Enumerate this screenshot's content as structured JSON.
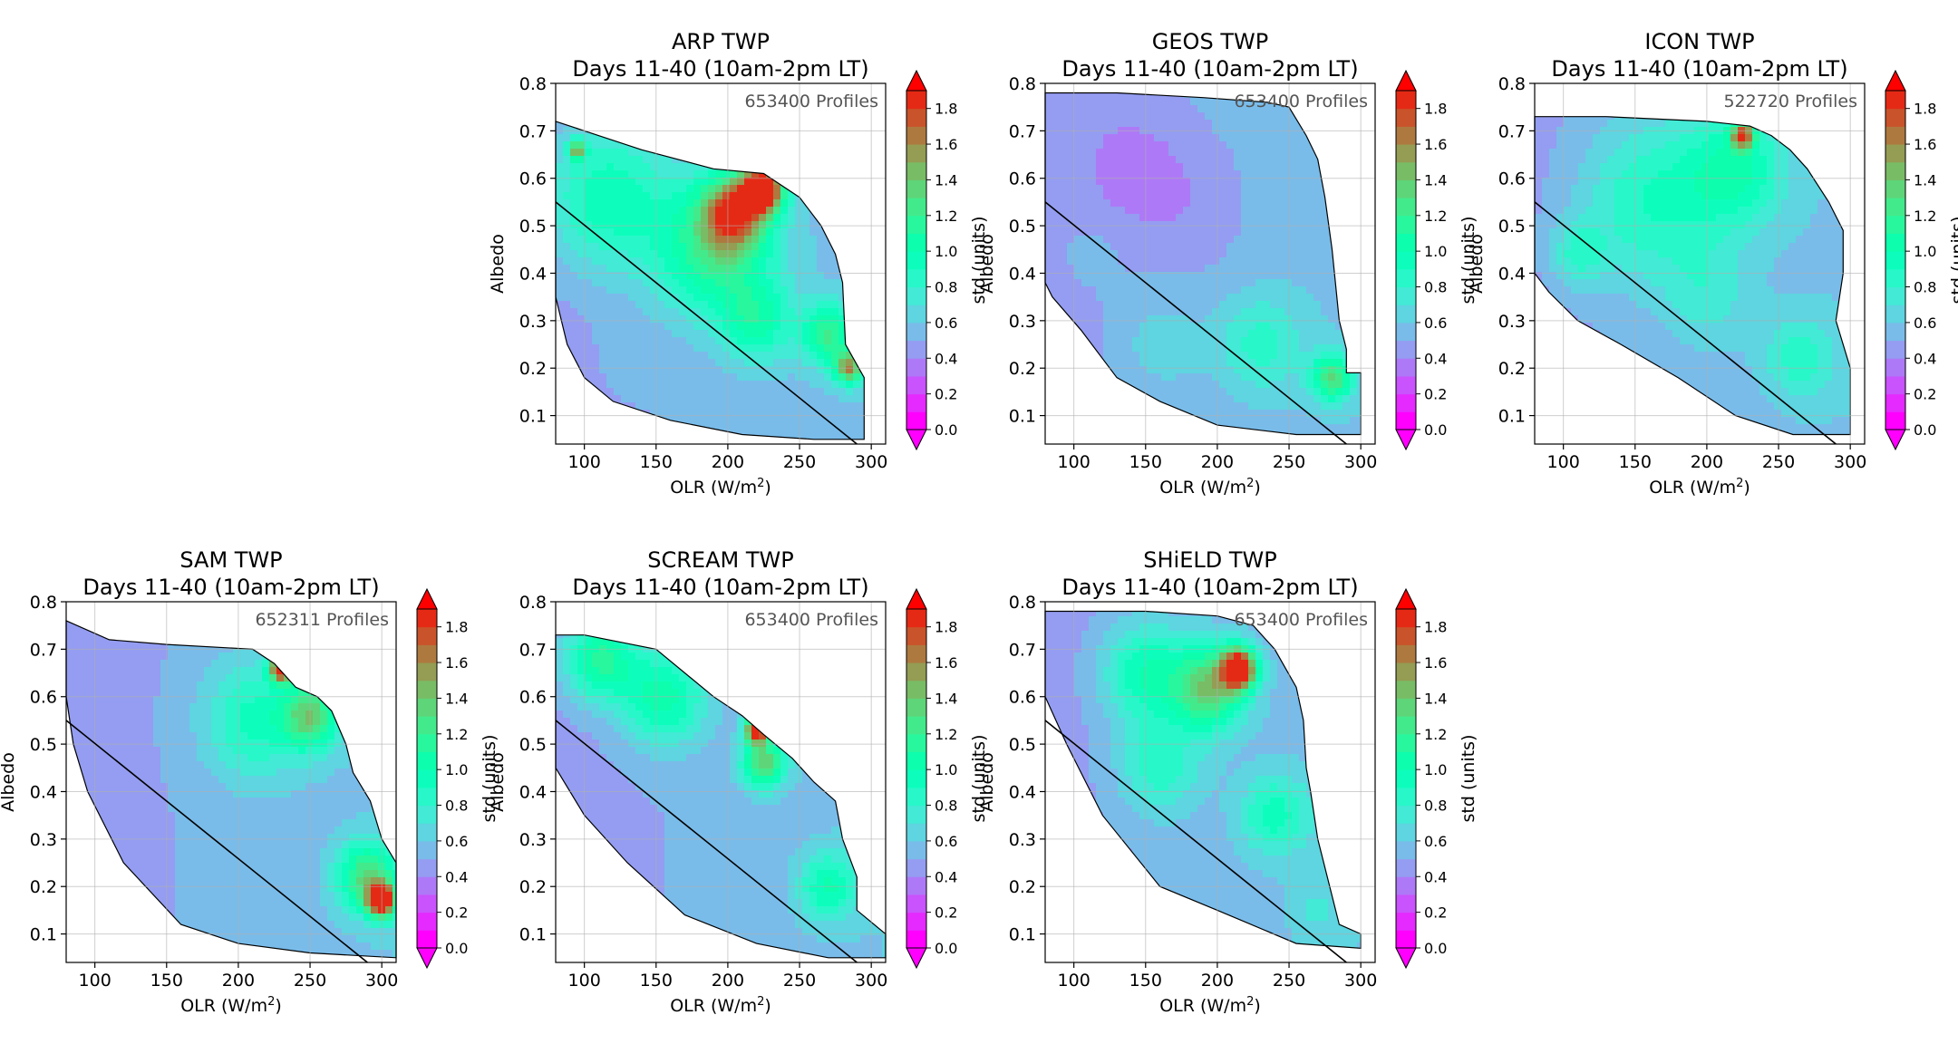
{
  "figure": {
    "colorbar": {
      "label": "std (units)",
      "ticks": [
        "0.0",
        "0.2",
        "0.4",
        "0.6",
        "0.8",
        "1.0",
        "1.2",
        "1.4",
        "1.6",
        "1.8"
      ],
      "range": [
        0.0,
        1.9
      ],
      "colormap": "rainbow",
      "extend": "both"
    },
    "xaxis": {
      "label": "OLR (W/m",
      "label_sup": "2",
      "label_end": ")",
      "ticks": [
        "100",
        "150",
        "200",
        "250",
        "300"
      ]
    },
    "yaxis": {
      "label": "Albedo",
      "ticks": [
        "0.1",
        "0.2",
        "0.3",
        "0.4",
        "0.5",
        "0.6",
        "0.7",
        "0.8"
      ]
    },
    "panels": [
      {
        "title": "ARP TWP",
        "subtitle": "Days 11-40 (10am-2pm LT)",
        "profiles": "653400 Profiles"
      },
      {
        "title": "GEOS TWP",
        "subtitle": "Days 11-40 (10am-2pm LT)",
        "profiles": "653400 Profiles"
      },
      {
        "title": "ICON TWP",
        "subtitle": "Days 11-40 (10am-2pm LT)",
        "profiles": "522720 Profiles"
      },
      {
        "title": "SAM TWP",
        "subtitle": "Days 11-40 (10am-2pm LT)",
        "profiles": "652311 Profiles"
      },
      {
        "title": "SCREAM TWP",
        "subtitle": "Days 11-40 (10am-2pm LT)",
        "profiles": "653400 Profiles"
      },
      {
        "title": "SHiELD TWP",
        "subtitle": "Days 11-40 (10am-2pm LT)",
        "profiles": "653400 Profiles"
      }
    ]
  },
  "chart_data": [
    {
      "type": "heatmap",
      "title": "ARP TWP",
      "subtitle": "Days 11-40 (10am-2pm LT)",
      "annotation": "653400 Profiles",
      "xlabel": "OLR (W/m2)",
      "ylabel": "Albedo",
      "colorbar_label": "std (units)",
      "xlim": [
        80,
        310
      ],
      "ylim": [
        0.04,
        0.8
      ],
      "zlim": [
        0.0,
        1.9
      ],
      "reference_line": {
        "x": [
          80,
          290
        ],
        "y": [
          0.55,
          0.03
        ]
      },
      "domain_polygon": [
        [
          80,
          0.72
        ],
        [
          100,
          0.7
        ],
        [
          140,
          0.66
        ],
        [
          190,
          0.62
        ],
        [
          225,
          0.61
        ],
        [
          250,
          0.56
        ],
        [
          265,
          0.5
        ],
        [
          275,
          0.44
        ],
        [
          280,
          0.38
        ],
        [
          282,
          0.25
        ],
        [
          295,
          0.18
        ],
        [
          295,
          0.05
        ],
        [
          285,
          0.05
        ],
        [
          260,
          0.05
        ],
        [
          210,
          0.06
        ],
        [
          160,
          0.09
        ],
        [
          120,
          0.13
        ],
        [
          100,
          0.18
        ],
        [
          88,
          0.25
        ],
        [
          80,
          0.35
        ]
      ],
      "hotspots": [
        {
          "x": 115,
          "y": 0.56,
          "z": 0.95,
          "r": 45
        },
        {
          "x": 190,
          "y": 0.45,
          "z": 1.1,
          "r": 40
        },
        {
          "x": 205,
          "y": 0.53,
          "z": 1.5,
          "r": 22
        },
        {
          "x": 225,
          "y": 0.58,
          "z": 1.9,
          "r": 14
        },
        {
          "x": 270,
          "y": 0.27,
          "z": 1.1,
          "r": 18
        },
        {
          "x": 285,
          "y": 0.2,
          "z": 1.4,
          "r": 10
        },
        {
          "x": 130,
          "y": 0.22,
          "z": 0.5,
          "r": 25
        },
        {
          "x": 220,
          "y": 0.3,
          "z": 0.9,
          "r": 25
        },
        {
          "x": 95,
          "y": 0.66,
          "z": 1.3,
          "r": 6
        }
      ]
    },
    {
      "type": "heatmap",
      "title": "GEOS TWP",
      "subtitle": "Days 11-40 (10am-2pm LT)",
      "annotation": "653400 Profiles",
      "xlabel": "OLR (W/m2)",
      "ylabel": "Albedo",
      "colorbar_label": "std (units)",
      "xlim": [
        80,
        310
      ],
      "ylim": [
        0.04,
        0.8
      ],
      "zlim": [
        0.0,
        1.9
      ],
      "reference_line": {
        "x": [
          80,
          290
        ],
        "y": [
          0.55,
          0.03
        ]
      },
      "domain_polygon": [
        [
          80,
          0.78
        ],
        [
          130,
          0.78
        ],
        [
          190,
          0.77
        ],
        [
          235,
          0.76
        ],
        [
          250,
          0.75
        ],
        [
          262,
          0.69
        ],
        [
          270,
          0.64
        ],
        [
          275,
          0.56
        ],
        [
          280,
          0.45
        ],
        [
          285,
          0.3
        ],
        [
          290,
          0.24
        ],
        [
          290,
          0.19
        ],
        [
          300,
          0.19
        ],
        [
          300,
          0.06
        ],
        [
          255,
          0.06
        ],
        [
          200,
          0.08
        ],
        [
          160,
          0.13
        ],
        [
          130,
          0.18
        ],
        [
          105,
          0.28
        ],
        [
          85,
          0.35
        ],
        [
          80,
          0.38
        ]
      ],
      "hotspots": [
        {
          "x": 180,
          "y": 0.55,
          "z": 0.35,
          "r": 40
        },
        {
          "x": 140,
          "y": 0.62,
          "z": 0.3,
          "r": 30
        },
        {
          "x": 230,
          "y": 0.25,
          "z": 0.75,
          "r": 30
        },
        {
          "x": 280,
          "y": 0.18,
          "z": 1.2,
          "r": 14
        },
        {
          "x": 160,
          "y": 0.25,
          "z": 0.6,
          "r": 30
        },
        {
          "x": 110,
          "y": 0.45,
          "z": 0.5,
          "r": 30
        }
      ]
    },
    {
      "type": "heatmap",
      "title": "ICON TWP",
      "subtitle": "Days 11-40 (10am-2pm LT)",
      "annotation": "522720 Profiles",
      "xlabel": "OLR (W/m2)",
      "ylabel": "Albedo",
      "colorbar_label": "std (units)",
      "xlim": [
        80,
        310
      ],
      "ylim": [
        0.04,
        0.8
      ],
      "zlim": [
        0.0,
        1.9
      ],
      "reference_line": {
        "x": [
          80,
          290
        ],
        "y": [
          0.55,
          0.03
        ]
      },
      "domain_polygon": [
        [
          80,
          0.73
        ],
        [
          130,
          0.73
        ],
        [
          200,
          0.72
        ],
        [
          230,
          0.71
        ],
        [
          245,
          0.69
        ],
        [
          258,
          0.66
        ],
        [
          270,
          0.62
        ],
        [
          285,
          0.55
        ],
        [
          295,
          0.49
        ],
        [
          295,
          0.4
        ],
        [
          290,
          0.3
        ],
        [
          300,
          0.2
        ],
        [
          300,
          0.06
        ],
        [
          260,
          0.06
        ],
        [
          220,
          0.1
        ],
        [
          180,
          0.18
        ],
        [
          140,
          0.25
        ],
        [
          110,
          0.3
        ],
        [
          90,
          0.36
        ],
        [
          80,
          0.4
        ]
      ],
      "hotspots": [
        {
          "x": 160,
          "y": 0.55,
          "z": 0.85,
          "r": 50
        },
        {
          "x": 220,
          "y": 0.62,
          "z": 0.9,
          "r": 35
        },
        {
          "x": 225,
          "y": 0.69,
          "z": 1.5,
          "r": 8
        },
        {
          "x": 200,
          "y": 0.35,
          "z": 0.65,
          "r": 30
        },
        {
          "x": 265,
          "y": 0.22,
          "z": 0.75,
          "r": 25
        },
        {
          "x": 110,
          "y": 0.44,
          "z": 0.75,
          "r": 20
        }
      ]
    },
    {
      "type": "heatmap",
      "title": "SAM TWP",
      "subtitle": "Days 11-40 (10am-2pm LT)",
      "annotation": "652311 Profiles",
      "xlabel": "OLR (W/m2)",
      "ylabel": "Albedo",
      "colorbar_label": "std (units)",
      "xlim": [
        80,
        310
      ],
      "ylim": [
        0.04,
        0.8
      ],
      "zlim": [
        0.0,
        1.9
      ],
      "reference_line": {
        "x": [
          80,
          290
        ],
        "y": [
          0.55,
          0.03
        ]
      },
      "domain_polygon": [
        [
          80,
          0.76
        ],
        [
          110,
          0.72
        ],
        [
          150,
          0.71
        ],
        [
          210,
          0.7
        ],
        [
          225,
          0.67
        ],
        [
          240,
          0.62
        ],
        [
          255,
          0.6
        ],
        [
          265,
          0.57
        ],
        [
          275,
          0.5
        ],
        [
          280,
          0.44
        ],
        [
          292,
          0.38
        ],
        [
          300,
          0.3
        ],
        [
          310,
          0.25
        ],
        [
          310,
          0.05
        ],
        [
          250,
          0.06
        ],
        [
          200,
          0.08
        ],
        [
          160,
          0.12
        ],
        [
          120,
          0.25
        ],
        [
          95,
          0.4
        ],
        [
          85,
          0.5
        ],
        [
          80,
          0.6
        ]
      ],
      "hotspots": [
        {
          "x": 230,
          "y": 0.66,
          "z": 1.9,
          "r": 8
        },
        {
          "x": 250,
          "y": 0.56,
          "z": 1.2,
          "r": 20
        },
        {
          "x": 300,
          "y": 0.17,
          "z": 1.9,
          "r": 10
        },
        {
          "x": 290,
          "y": 0.22,
          "z": 1.2,
          "r": 20
        },
        {
          "x": 210,
          "y": 0.55,
          "z": 0.85,
          "r": 35
        },
        {
          "x": 140,
          "y": 0.45,
          "z": 0.45,
          "r": 40
        }
      ]
    },
    {
      "type": "heatmap",
      "title": "SCREAM TWP",
      "subtitle": "Days 11-40 (10am-2pm LT)",
      "annotation": "653400 Profiles",
      "xlabel": "OLR (W/m2)",
      "ylabel": "Albedo",
      "colorbar_label": "std (units)",
      "xlim": [
        80,
        310
      ],
      "ylim": [
        0.04,
        0.8
      ],
      "zlim": [
        0.0,
        1.9
      ],
      "reference_line": {
        "x": [
          80,
          290
        ],
        "y": [
          0.55,
          0.03
        ]
      },
      "domain_polygon": [
        [
          80,
          0.73
        ],
        [
          100,
          0.73
        ],
        [
          150,
          0.7
        ],
        [
          190,
          0.6
        ],
        [
          210,
          0.56
        ],
        [
          225,
          0.52
        ],
        [
          245,
          0.47
        ],
        [
          260,
          0.42
        ],
        [
          275,
          0.38
        ],
        [
          280,
          0.3
        ],
        [
          290,
          0.22
        ],
        [
          290,
          0.15
        ],
        [
          310,
          0.1
        ],
        [
          310,
          0.05
        ],
        [
          270,
          0.05
        ],
        [
          220,
          0.08
        ],
        [
          170,
          0.14
        ],
        [
          130,
          0.25
        ],
        [
          100,
          0.35
        ],
        [
          80,
          0.45
        ]
      ],
      "hotspots": [
        {
          "x": 110,
          "y": 0.68,
          "z": 1.1,
          "r": 25
        },
        {
          "x": 155,
          "y": 0.6,
          "z": 1.0,
          "r": 30
        },
        {
          "x": 220,
          "y": 0.53,
          "z": 1.9,
          "r": 8
        },
        {
          "x": 225,
          "y": 0.46,
          "z": 1.3,
          "r": 15
        },
        {
          "x": 270,
          "y": 0.2,
          "z": 0.9,
          "r": 20
        },
        {
          "x": 150,
          "y": 0.3,
          "z": 0.45,
          "r": 30
        }
      ]
    },
    {
      "type": "heatmap",
      "title": "SHiELD TWP",
      "subtitle": "Days 11-40 (10am-2pm LT)",
      "annotation": "653400 Profiles",
      "xlabel": "OLR (W/m2)",
      "ylabel": "Albedo",
      "colorbar_label": "std (units)",
      "xlim": [
        80,
        310
      ],
      "ylim": [
        0.04,
        0.8
      ],
      "zlim": [
        0.0,
        1.9
      ],
      "reference_line": {
        "x": [
          80,
          290
        ],
        "y": [
          0.55,
          0.03
        ]
      },
      "domain_polygon": [
        [
          80,
          0.78
        ],
        [
          150,
          0.78
        ],
        [
          200,
          0.77
        ],
        [
          225,
          0.75
        ],
        [
          240,
          0.7
        ],
        [
          255,
          0.62
        ],
        [
          260,
          0.55
        ],
        [
          262,
          0.45
        ],
        [
          265,
          0.4
        ],
        [
          270,
          0.3
        ],
        [
          285,
          0.12
        ],
        [
          300,
          0.1
        ],
        [
          300,
          0.07
        ],
        [
          255,
          0.08
        ],
        [
          200,
          0.15
        ],
        [
          160,
          0.2
        ],
        [
          120,
          0.35
        ],
        [
          95,
          0.5
        ],
        [
          80,
          0.6
        ]
      ],
      "hotspots": [
        {
          "x": 215,
          "y": 0.66,
          "z": 1.9,
          "r": 12
        },
        {
          "x": 195,
          "y": 0.62,
          "z": 1.3,
          "r": 25
        },
        {
          "x": 150,
          "y": 0.65,
          "z": 0.95,
          "r": 30
        },
        {
          "x": 160,
          "y": 0.45,
          "z": 0.8,
          "r": 30
        },
        {
          "x": 240,
          "y": 0.35,
          "z": 0.85,
          "r": 25
        },
        {
          "x": 270,
          "y": 0.15,
          "z": 0.6,
          "r": 20
        }
      ]
    }
  ]
}
